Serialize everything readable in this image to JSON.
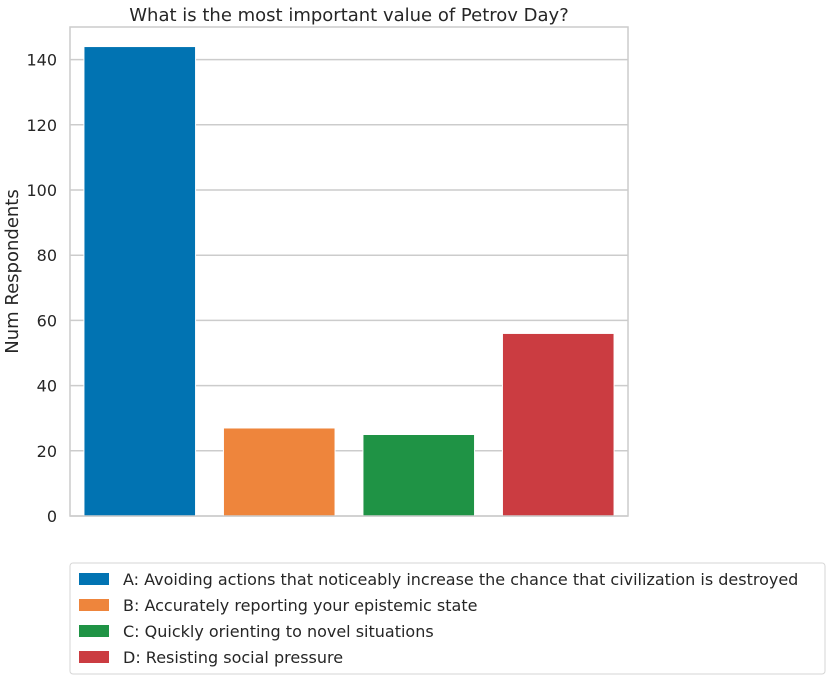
{
  "chart_data": {
    "type": "bar",
    "title": "What is the most important value of Petrov Day?",
    "ylabel": "Num Respondents",
    "xlabel": "",
    "ylim": [
      0,
      150
    ],
    "yticks": [
      0,
      20,
      40,
      60,
      80,
      100,
      120,
      140
    ],
    "grid": "horizontal",
    "legend_position": "bottom",
    "categories": [
      "A",
      "B",
      "C",
      "D"
    ],
    "values": [
      144,
      27,
      25,
      56
    ],
    "colors": [
      "#0173b2",
      "#ee853c",
      "#1f9345",
      "#cb3c41"
    ],
    "legend": [
      "A: Avoiding actions that noticeably increase the chance that civilization is destroyed",
      "B: Accurately reporting your epistemic state",
      "C: Quickly orienting to novel situations",
      "D: Resisting social pressure"
    ]
  }
}
